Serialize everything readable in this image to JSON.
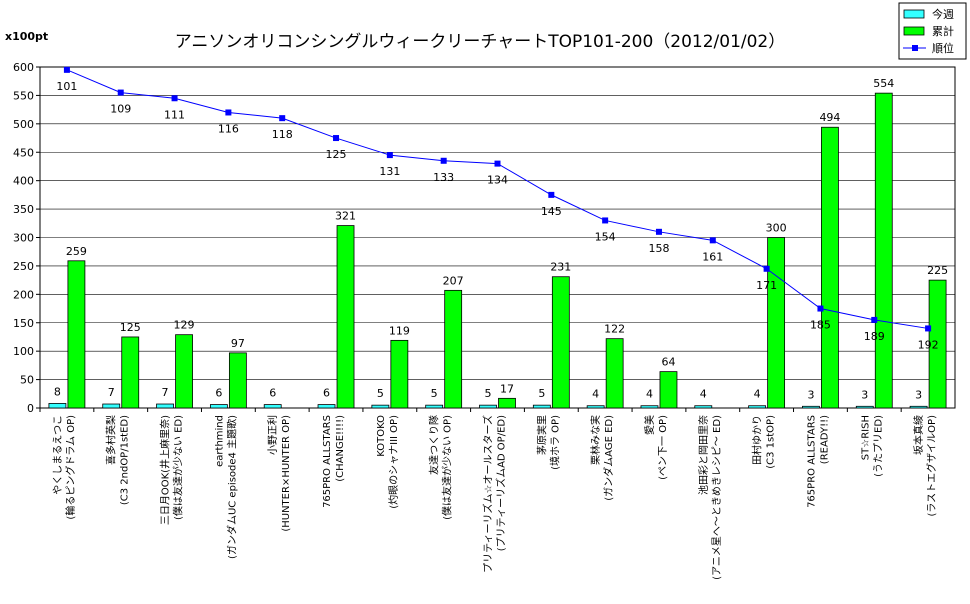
{
  "chart_data": {
    "type": "bar",
    "title": "アニソンオリコンシングルウィークリーチャートTOP101-200（2012/01/02）",
    "unit_label": "x100pt",
    "ylim": [
      0,
      600
    ],
    "yticks": [
      0,
      50,
      100,
      150,
      200,
      250,
      300,
      350,
      400,
      450,
      500,
      550,
      600
    ],
    "grid": true,
    "legend_position": "top-right",
    "categories": [
      [
        "やくしまるえつこ",
        "(輪るピングドラム OP)"
      ],
      [
        "喜多村英梨",
        "(C3 2ndOP/1stED)"
      ],
      [
        "三日月OOK(井上麻里奈)",
        "(僕は友達が少ない ED)"
      ],
      [
        "earthmind",
        "(ガンダムUC episode4 主題歌)"
      ],
      [
        "小野正利",
        "(HUNTER×HUNTER OP)"
      ],
      [
        "765PRO ALLSTARS",
        "(CHANGE!!!!)"
      ],
      [
        "KOTOKO",
        "(灼眼のシャナIII OP)"
      ],
      [
        "友達つくり隊",
        "(僕は友達が少ない OP)"
      ],
      [
        "プリティーリズム☆オールスターズ",
        "(プリティーリズムAD OP/ED)"
      ],
      [
        "茅原実里",
        "(境ホラ OP)"
      ],
      [
        "栗林みな実",
        "(ガンダムAGE ED)"
      ],
      [
        "愛美",
        "(ペン下一 OP)"
      ],
      [
        "池田彩と岡田里奈",
        "(アニメ星へ〜ときめきレシピ〜 ED)"
      ],
      [
        "田村ゆかり",
        "(C3 1stOP)"
      ],
      [
        "765PRO ALLSTARS",
        "(READY!!)"
      ],
      [
        "ST☆RISH",
        "(うたプリED)"
      ],
      [
        "坂本真綾",
        "(ラストエグザイルOP)"
      ]
    ],
    "series": [
      {
        "name": "今週",
        "type": "bar",
        "color": "#33ffff",
        "values": [
          8,
          7,
          7,
          6,
          6,
          6,
          5,
          5,
          5,
          5,
          4,
          4,
          4,
          4,
          3,
          3,
          3
        ]
      },
      {
        "name": "累計",
        "type": "bar",
        "color": "#00ff00",
        "values": [
          259,
          125,
          129,
          97,
          null,
          321,
          119,
          207,
          17,
          231,
          122,
          64,
          null,
          300,
          494,
          554,
          225
        ]
      },
      {
        "name": "順位",
        "type": "line",
        "color": "#0000ff",
        "values": [
          101,
          109,
          111,
          116,
          118,
          125,
          131,
          133,
          134,
          145,
          154,
          158,
          161,
          171,
          185,
          189,
          192
        ]
      }
    ]
  }
}
